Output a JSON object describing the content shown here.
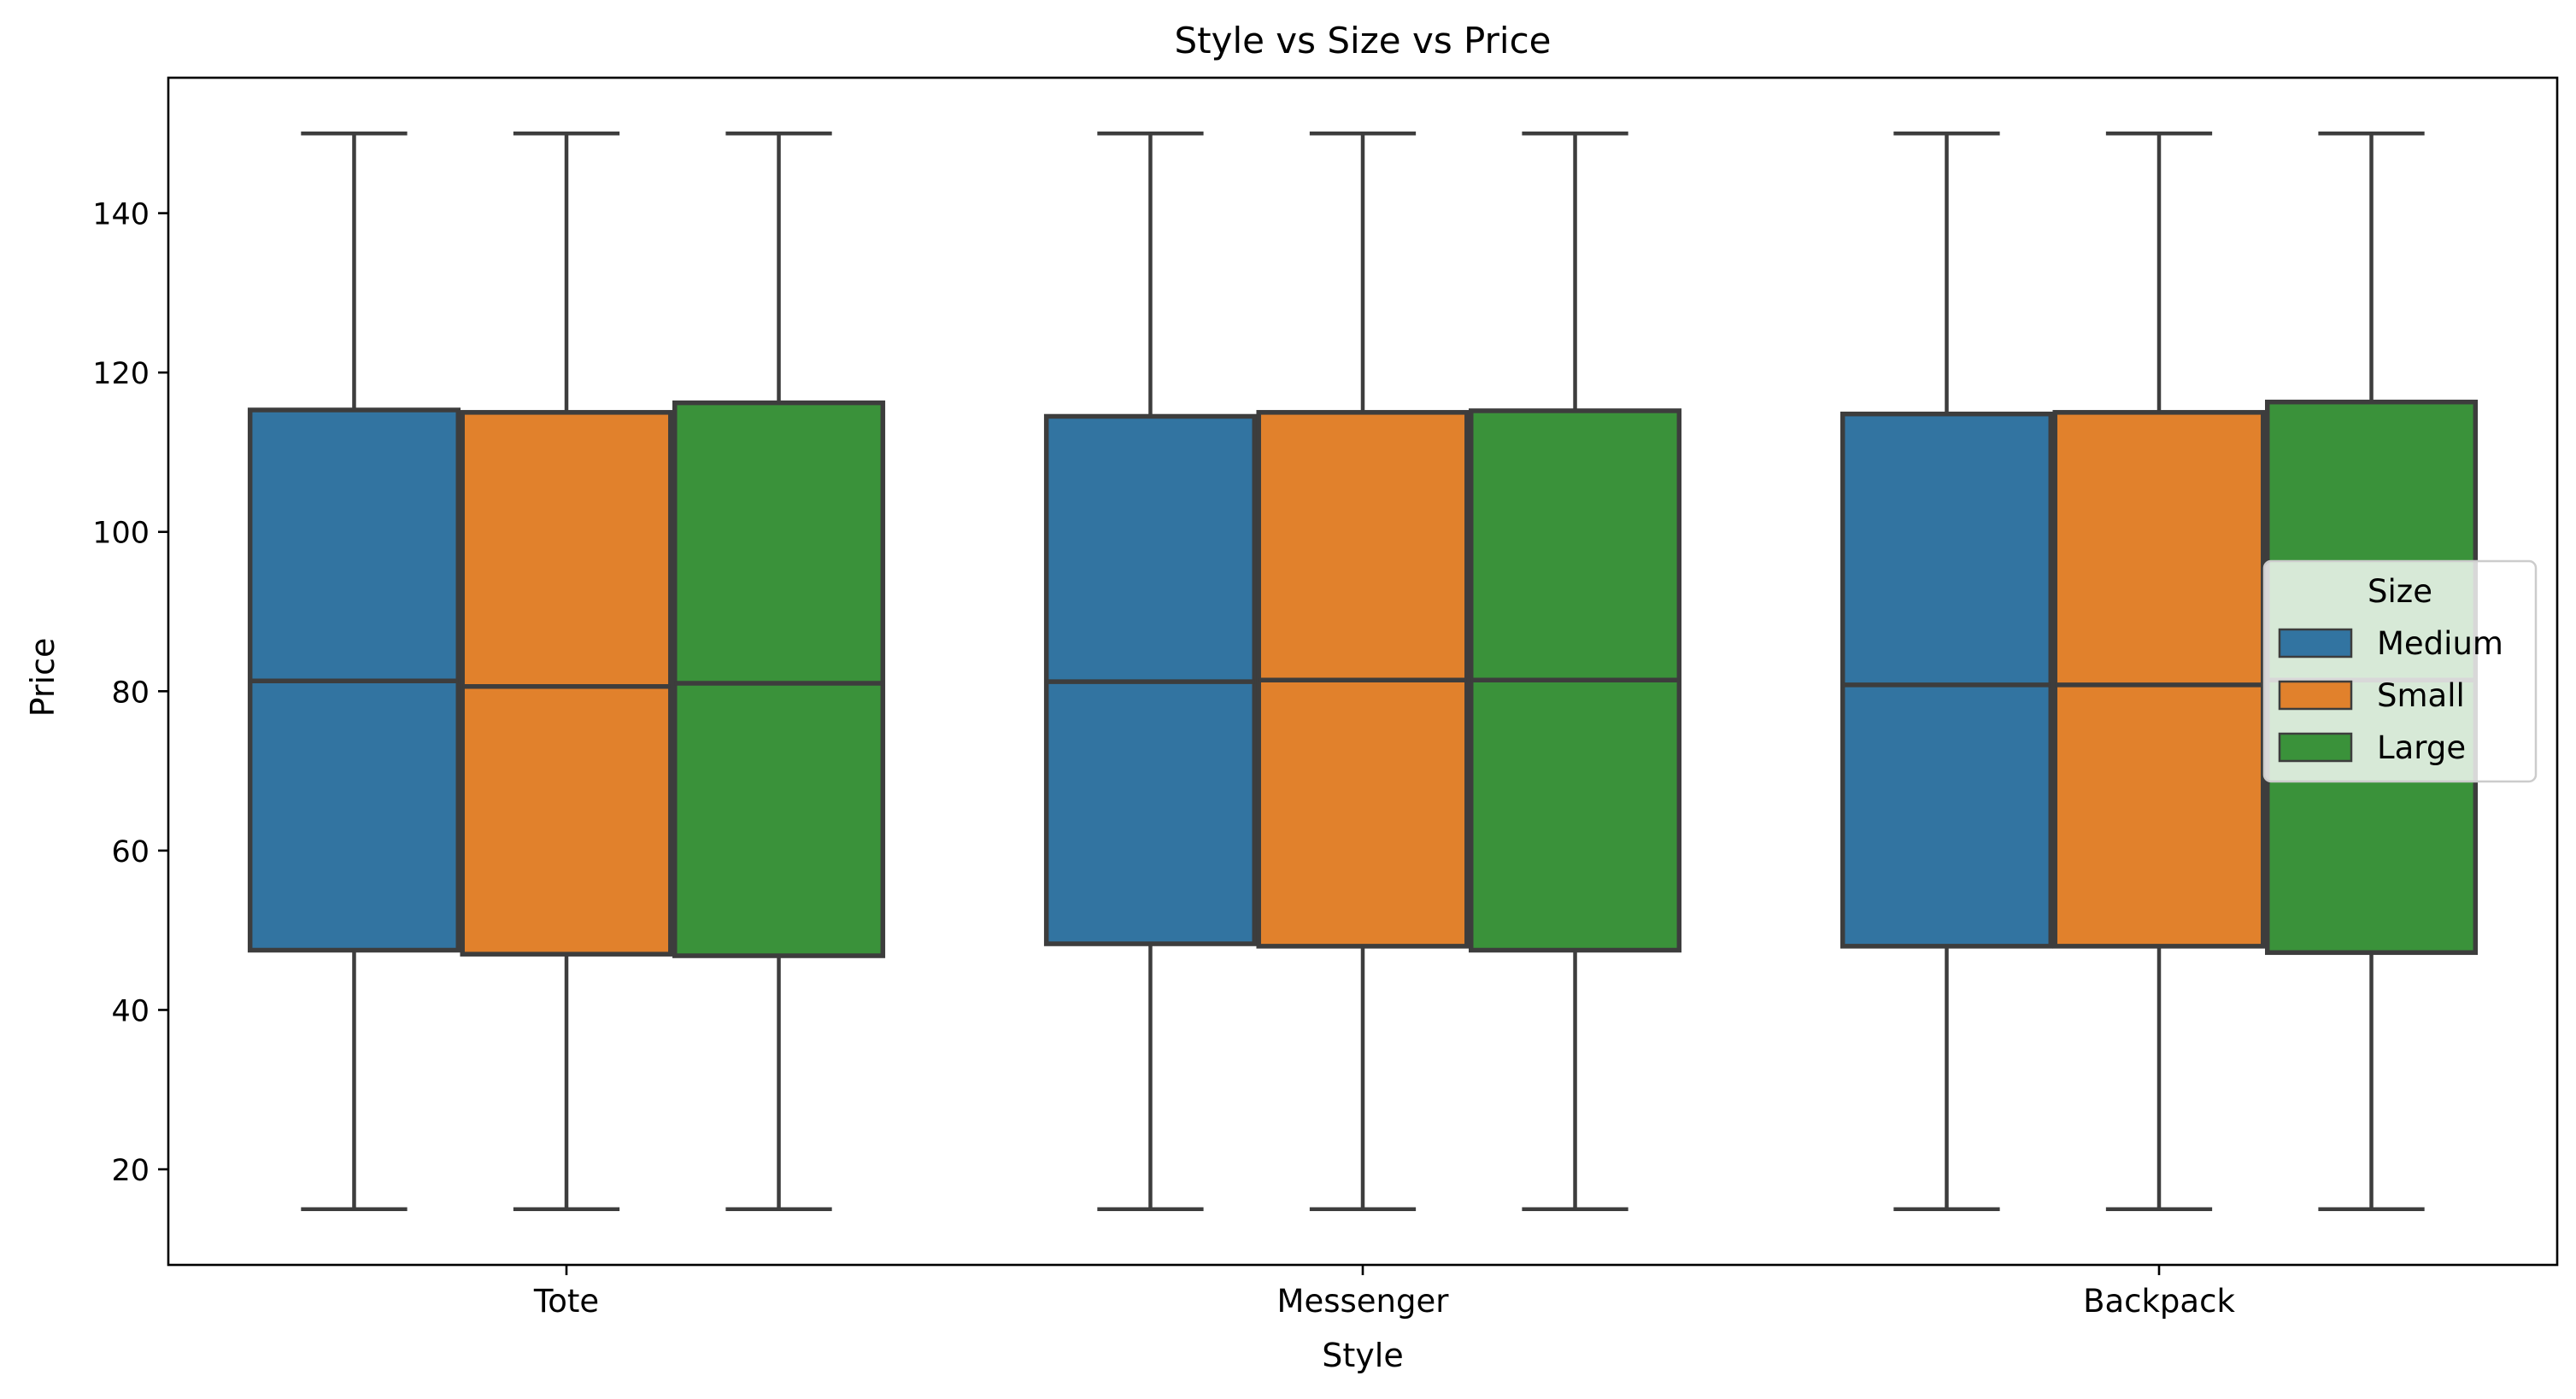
{
  "chart_data": {
    "type": "boxplot",
    "title": "Style vs Size vs Price",
    "xlabel": "Style",
    "ylabel": "Price",
    "categories": [
      "Tote",
      "Messenger",
      "Backpack"
    ],
    "ylim": [
      8,
      157
    ],
    "yticks": [
      20,
      40,
      60,
      80,
      100,
      120,
      140
    ],
    "grid": false,
    "legend": {
      "title": "Size",
      "placement": "center-right"
    },
    "series": [
      {
        "name": "Medium",
        "color": "#3274a1",
        "boxes": [
          {
            "whisker_low": 15,
            "q1": 47.5,
            "median": 81.3,
            "q3": 115.3,
            "whisker_high": 150
          },
          {
            "whisker_low": 15,
            "q1": 48.3,
            "median": 81.2,
            "q3": 114.5,
            "whisker_high": 150
          },
          {
            "whisker_low": 15,
            "q1": 48.0,
            "median": 80.8,
            "q3": 114.8,
            "whisker_high": 150
          }
        ]
      },
      {
        "name": "Small",
        "color": "#e1812c",
        "boxes": [
          {
            "whisker_low": 15,
            "q1": 47.0,
            "median": 80.6,
            "q3": 115.0,
            "whisker_high": 150
          },
          {
            "whisker_low": 15,
            "q1": 48.0,
            "median": 81.4,
            "q3": 115.0,
            "whisker_high": 150
          },
          {
            "whisker_low": 15,
            "q1": 48.0,
            "median": 80.8,
            "q3": 115.0,
            "whisker_high": 150
          }
        ]
      },
      {
        "name": "Large",
        "color": "#3a923a",
        "boxes": [
          {
            "whisker_low": 15,
            "q1": 46.8,
            "median": 81.0,
            "q3": 116.2,
            "whisker_high": 150
          },
          {
            "whisker_low": 15,
            "q1": 47.5,
            "median": 81.4,
            "q3": 115.2,
            "whisker_high": 150
          },
          {
            "whisker_low": 15,
            "q1": 47.2,
            "median": 81.4,
            "q3": 116.3,
            "whisker_high": 150
          }
        ]
      }
    ]
  }
}
